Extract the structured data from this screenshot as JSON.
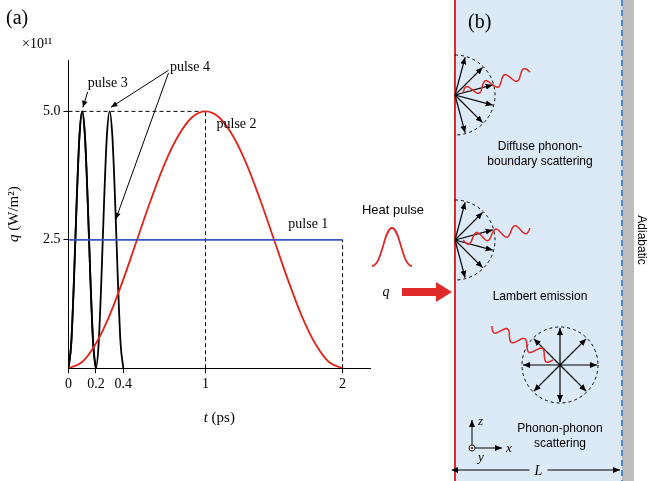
{
  "chart_data": {
    "type": "line",
    "panel": "(a)",
    "x_label": "t (ps)",
    "y_label": "q (W/m²)",
    "y_multiplier": "×10¹¹",
    "xlim": [
      0,
      2.2
    ],
    "xticks": [
      0,
      0.2,
      0.4,
      1,
      2
    ],
    "ylim": [
      0,
      6
    ],
    "yticks": [
      2.5,
      {
        "value": 5,
        "label": "5.0"
      }
    ],
    "grid": false,
    "series": [
      {
        "name": "pulse 1",
        "color": "#3a55c4",
        "x": [
          0,
          2
        ],
        "values": [
          2.5,
          2.5
        ]
      },
      {
        "name": "pulse 2",
        "color": "#e2231a",
        "x": [
          0,
          0.1,
          0.2,
          0.3,
          0.4,
          0.5,
          0.6,
          0.7,
          0.8,
          0.9,
          1,
          1.1,
          1.2,
          1.3,
          1.4,
          1.5,
          1.6,
          1.7,
          1.8,
          1.9,
          2
        ],
        "values": [
          0,
          0.12,
          0.48,
          1.03,
          1.73,
          2.5,
          3.27,
          3.97,
          4.52,
          4.88,
          5,
          4.88,
          4.52,
          3.97,
          3.27,
          2.5,
          1.73,
          1.03,
          0.48,
          0.12,
          0
        ]
      },
      {
        "name": "pulse 3",
        "color": "#000000",
        "x": [
          0,
          0.02,
          0.04,
          0.06,
          0.08,
          0.1,
          0.12,
          0.14,
          0.16,
          0.18,
          0.2
        ],
        "values": [
          0,
          0.48,
          1.73,
          3.27,
          4.52,
          5,
          4.52,
          3.27,
          1.73,
          0.48,
          0
        ]
      },
      {
        "name": "pulse 4",
        "color": "#000000",
        "x": [
          0,
          0.02,
          0.04,
          0.06,
          0.08,
          0.1,
          0.12,
          0.14,
          0.16,
          0.18,
          0.2,
          0.22,
          0.24,
          0.26,
          0.28,
          0.3,
          0.32,
          0.34,
          0.36,
          0.38,
          0.4
        ],
        "values": [
          0,
          0.48,
          1.73,
          3.27,
          4.52,
          5,
          4.52,
          3.27,
          1.73,
          0.48,
          0,
          0.48,
          1.73,
          3.27,
          4.52,
          5,
          4.52,
          3.27,
          1.73,
          0.48,
          0
        ]
      }
    ]
  },
  "diagram": {
    "panel": "(b)",
    "heat_pulse": "Heat pulse",
    "flux": "q",
    "labels": [
      "Diffuse phonon-boundary scattering",
      "Lambert emission",
      "Phonon-phonon scattering"
    ],
    "boundary": "Adiabatic",
    "axes": [
      "z",
      "y",
      "x"
    ],
    "length": "L"
  }
}
